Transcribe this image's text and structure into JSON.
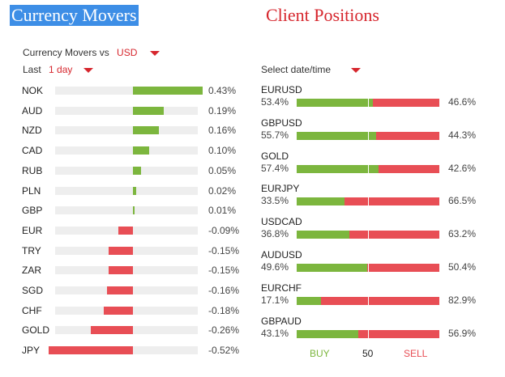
{
  "titles": {
    "movers": "Currency Movers",
    "positions": "Client Positions"
  },
  "controls": {
    "vs_label": "Currency Movers vs",
    "vs_value": "USD",
    "period_label": "Last",
    "period_value": "1 day",
    "date_label": "Select date/time"
  },
  "colors": {
    "buy": "#7cb63e",
    "sell": "#e84e55",
    "accent": "#d6262d",
    "title_bg": "#3d8ee6"
  },
  "movers": [
    {
      "name": "NOK",
      "pct": "0.43%",
      "value": 0.43
    },
    {
      "name": "AUD",
      "pct": "0.19%",
      "value": 0.19
    },
    {
      "name": "NZD",
      "pct": "0.16%",
      "value": 0.16
    },
    {
      "name": "CAD",
      "pct": "0.10%",
      "value": 0.1
    },
    {
      "name": "RUB",
      "pct": "0.05%",
      "value": 0.05
    },
    {
      "name": "PLN",
      "pct": "0.02%",
      "value": 0.02
    },
    {
      "name": "GBP",
      "pct": "0.01%",
      "value": 0.01
    },
    {
      "name": "EUR",
      "pct": "-0.09%",
      "value": -0.09
    },
    {
      "name": "TRY",
      "pct": "-0.15%",
      "value": -0.15
    },
    {
      "name": "ZAR",
      "pct": "-0.15%",
      "value": -0.15
    },
    {
      "name": "SGD",
      "pct": "-0.16%",
      "value": -0.16
    },
    {
      "name": "CHF",
      "pct": "-0.18%",
      "value": -0.18
    },
    {
      "name": "GOLD",
      "pct": "-0.26%",
      "value": -0.26
    },
    {
      "name": "JPY",
      "pct": "-0.52%",
      "value": -0.52
    }
  ],
  "positions": [
    {
      "name": "EURUSD",
      "buy": "53.4%",
      "sell": "46.6%",
      "buy_value": 53.4
    },
    {
      "name": "GBPUSD",
      "buy": "55.7%",
      "sell": "44.3%",
      "buy_value": 55.7
    },
    {
      "name": "GOLD",
      "buy": "57.4%",
      "sell": "42.6%",
      "buy_value": 57.4
    },
    {
      "name": "EURJPY",
      "buy": "33.5%",
      "sell": "66.5%",
      "buy_value": 33.5
    },
    {
      "name": "USDCAD",
      "buy": "36.8%",
      "sell": "63.2%",
      "buy_value": 36.8
    },
    {
      "name": "AUDUSD",
      "buy": "49.6%",
      "sell": "50.4%",
      "buy_value": 49.6
    },
    {
      "name": "EURCHF",
      "buy": "17.1%",
      "sell": "82.9%",
      "buy_value": 17.1
    },
    {
      "name": "GBPAUD",
      "buy": "43.1%",
      "sell": "56.9%",
      "buy_value": 43.1
    }
  ],
  "legend": {
    "buy": "BUY",
    "mid": "50",
    "sell": "SELL"
  }
}
